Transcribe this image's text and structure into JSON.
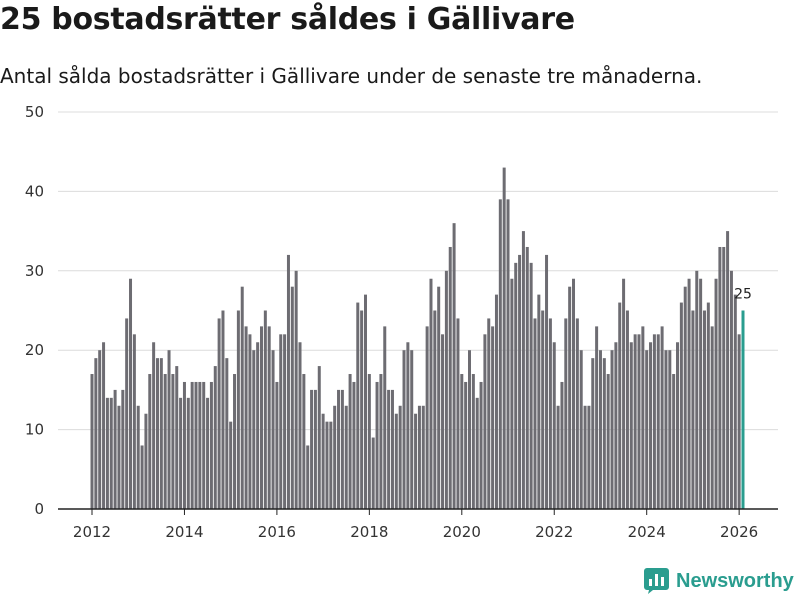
{
  "header": {
    "title": "25 bostadsrätter såldes i Gällivare",
    "subtitle": "Antal sålda bostadsrätter i Gällivare under de senaste tre månaderna."
  },
  "brand": {
    "name": "Newsworthy",
    "color": "#2a9d8f"
  },
  "colors": {
    "bar": "#6d6c72",
    "highlight": "#2a9d8f",
    "grid": "#dcdcdc",
    "axis": "#222222"
  },
  "chart_data": {
    "type": "bar",
    "title": "25 bostadsrätter såldes i Gällivare",
    "xlabel": "",
    "ylabel": "",
    "ylim": [
      0,
      50
    ],
    "yticks": [
      0,
      10,
      20,
      30,
      40,
      50
    ],
    "xticks": [
      "2012",
      "2014",
      "2016",
      "2018",
      "2020",
      "2022",
      "2024",
      "2026"
    ],
    "x_start": "2012-01",
    "x_end": "2026-02",
    "highlight_label": "25",
    "values": [
      17,
      19,
      20,
      21,
      14,
      14,
      15,
      13,
      15,
      24,
      29,
      22,
      13,
      8,
      12,
      17,
      21,
      19,
      19,
      17,
      20,
      17,
      18,
      14,
      16,
      14,
      16,
      16,
      16,
      16,
      14,
      16,
      18,
      24,
      25,
      19,
      11,
      17,
      25,
      28,
      23,
      22,
      20,
      21,
      23,
      25,
      23,
      20,
      16,
      22,
      22,
      32,
      28,
      30,
      21,
      17,
      8,
      15,
      15,
      18,
      12,
      11,
      11,
      13,
      15,
      15,
      13,
      17,
      16,
      26,
      25,
      27,
      17,
      9,
      16,
      17,
      23,
      15,
      15,
      12,
      13,
      20,
      21,
      20,
      12,
      13,
      13,
      23,
      29,
      25,
      28,
      22,
      30,
      33,
      36,
      24,
      17,
      16,
      20,
      17,
      14,
      16,
      22,
      24,
      23,
      27,
      39,
      43,
      39,
      29,
      31,
      32,
      35,
      33,
      31,
      24,
      27,
      25,
      32,
      24,
      21,
      13,
      16,
      24,
      28,
      29,
      24,
      20,
      13,
      13,
      19,
      23,
      20,
      19,
      17,
      20,
      21,
      26,
      29,
      25,
      21,
      22,
      22,
      23,
      20,
      21,
      22,
      22,
      23,
      20,
      20,
      17,
      21,
      26,
      28,
      29,
      25,
      30,
      29,
      25,
      26,
      23,
      29,
      33,
      33,
      35,
      30,
      27,
      22,
      25
    ]
  }
}
